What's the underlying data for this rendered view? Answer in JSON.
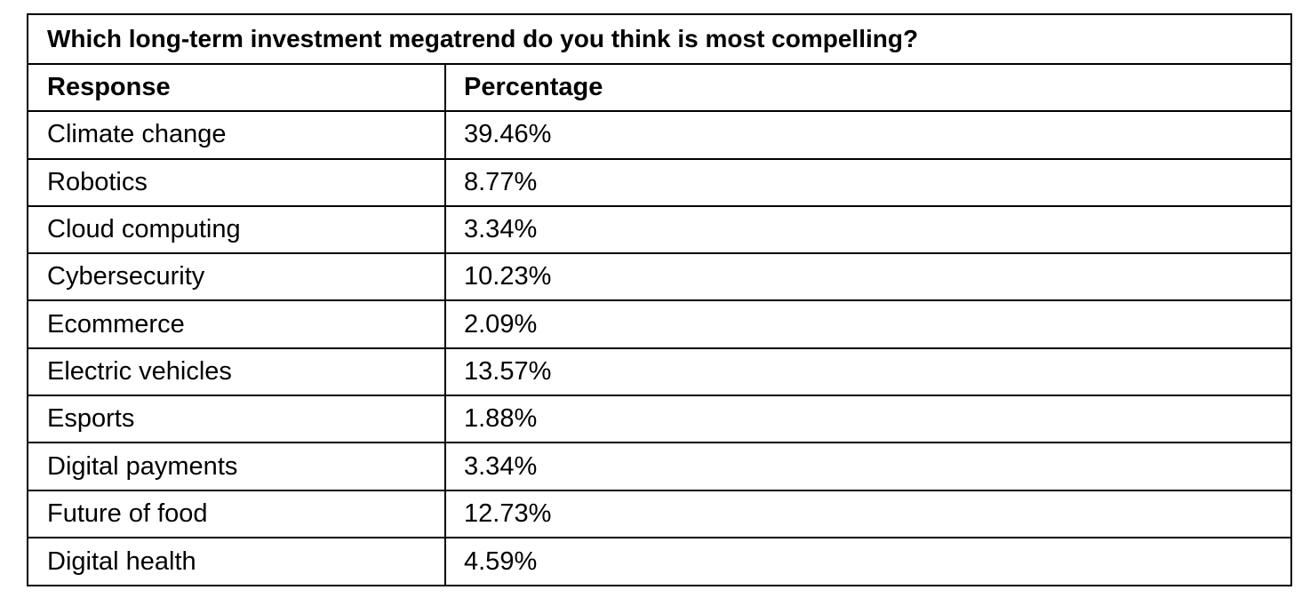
{
  "table": {
    "title": "Which long-term investment megatrend do you think is most compelling?",
    "headers": [
      "Response",
      "Percentage"
    ],
    "rows": [
      {
        "response": "Climate change",
        "percentage": "39.46%"
      },
      {
        "response": "Robotics",
        "percentage": "8.77%"
      },
      {
        "response": "Cloud computing",
        "percentage": "3.34%"
      },
      {
        "response": "Cybersecurity",
        "percentage": "10.23%"
      },
      {
        "response": "Ecommerce",
        "percentage": "2.09%"
      },
      {
        "response": "Electric vehicles",
        "percentage": "13.57%"
      },
      {
        "response": "Esports",
        "percentage": "1.88%"
      },
      {
        "response": "Digital payments",
        "percentage": "3.34%"
      },
      {
        "response": "Future of food",
        "percentage": "12.73%"
      },
      {
        "response": "Digital health",
        "percentage": "4.59%"
      }
    ]
  }
}
